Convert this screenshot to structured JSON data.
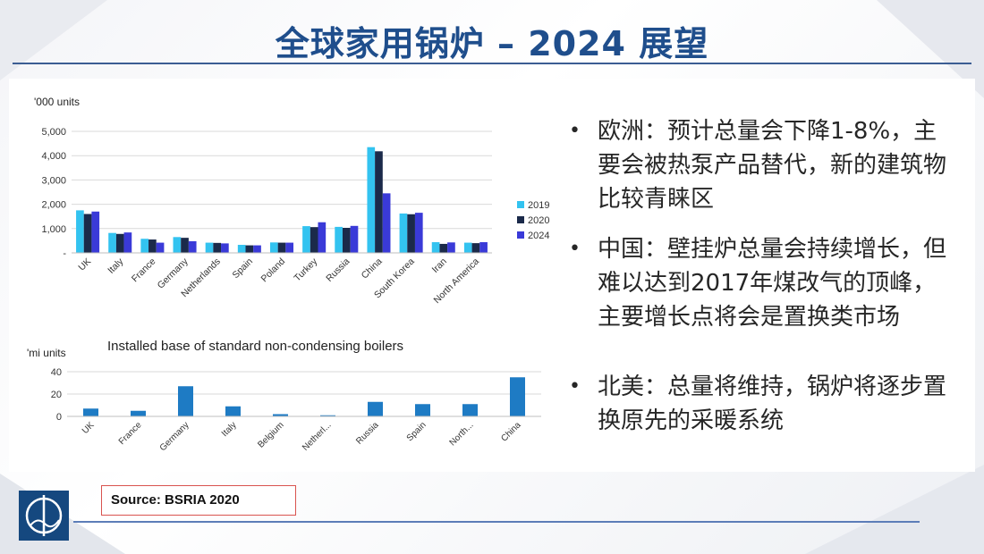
{
  "slide": {
    "title": "全球家用锅炉 – 2024 展望",
    "source": "Source: BSRIA 2020",
    "bullets": [
      "欧洲：预计总量会下降1-8%，主要会被热泵产品替代，新的建筑物比较青睐区",
      "中国：壁挂炉总量会持续增长，但难以达到2017年煤改气的顶峰，主要增长点将会是置换类市场",
      "北美：总量将维持，锅炉将逐步置换原先的采暖系统"
    ],
    "colors": {
      "title": "#1f4e8c",
      "rule": "#3b5d93",
      "source_border": "#d9534f"
    }
  },
  "chart_data": [
    {
      "type": "bar",
      "title": "",
      "unit_label": "'000 units",
      "categories": [
        "UK",
        "Italy",
        "France",
        "Germany",
        "Netherlands",
        "Spain",
        "Poland",
        "Turkey",
        "Russia",
        "China",
        "South Korea",
        "Iran",
        "North America"
      ],
      "series": [
        {
          "name": "2019",
          "color": "#33c3f0",
          "values": [
            1750,
            820,
            580,
            650,
            420,
            330,
            430,
            1100,
            1070,
            4350,
            1620,
            440,
            420
          ]
        },
        {
          "name": "2020",
          "color": "#1b2a4a",
          "values": [
            1600,
            780,
            550,
            620,
            410,
            310,
            420,
            1060,
            1030,
            4180,
            1590,
            370,
            400
          ]
        },
        {
          "name": "2024",
          "color": "#3a3ad8",
          "values": [
            1700,
            840,
            420,
            480,
            390,
            310,
            420,
            1260,
            1110,
            2450,
            1650,
            430,
            440
          ]
        }
      ],
      "ylim": [
        0,
        5000
      ],
      "yticks": [
        "-",
        "1,000",
        "2,000",
        "3,000",
        "4,000",
        "5,000"
      ],
      "grid": true,
      "legend": "right"
    },
    {
      "type": "bar",
      "title": "Installed base of standard non-condensing boilers",
      "unit_label": "'mi units",
      "categories": [
        "UK",
        "France",
        "Germany",
        "Italy",
        "Belgium",
        "Netherl...",
        "Russia",
        "Spain",
        "North...",
        "China"
      ],
      "series": [
        {
          "name": "",
          "color": "#1e7bc4",
          "values": [
            7,
            5,
            27,
            9,
            2,
            1,
            13,
            11,
            11,
            35
          ]
        }
      ],
      "ylim": [
        0,
        40
      ],
      "yticks": [
        "0",
        "20",
        "40"
      ],
      "grid": true,
      "legend": "none"
    }
  ]
}
